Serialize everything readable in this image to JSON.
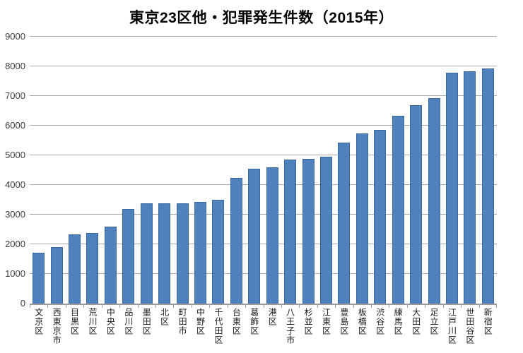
{
  "title": "東京23区他・犯罪発生件数（2015年）",
  "colors": {
    "bar_fill": "#4f81bd",
    "bar_border": "#3a679f",
    "gridline": "#a8a8a8",
    "axis_line": "#9a9a9a",
    "title_text": "#000000",
    "tick_text": "#3d3d3d"
  },
  "chart_data": {
    "type": "bar",
    "title": "東京23区他・犯罪発生件数（2015年）",
    "xlabel": "",
    "ylabel": "",
    "ylim": [
      0,
      9000
    ],
    "yticks": [
      0,
      1000,
      2000,
      3000,
      4000,
      5000,
      6000,
      7000,
      8000,
      9000
    ],
    "grid": true,
    "legend": false,
    "categories": [
      "文京区",
      "西東京市",
      "目黒区",
      "荒川区",
      "中央区",
      "品川区",
      "墨田区",
      "北区",
      "町田市",
      "中野区",
      "千代田区",
      "台東区",
      "葛飾区",
      "港区",
      "八王子市",
      "杉並区",
      "江東区",
      "豊島区",
      "板橋区",
      "渋谷区",
      "練馬区",
      "大田区",
      "足立区",
      "江戸川区",
      "世田谷区",
      "新宿区"
    ],
    "values": [
      1720,
      1900,
      2330,
      2380,
      2590,
      3190,
      3370,
      3370,
      3390,
      3440,
      3490,
      4230,
      4540,
      4590,
      4860,
      4870,
      4960,
      5430,
      5740,
      5860,
      6340,
      6680,
      6920,
      7780,
      7840,
      7920
    ]
  }
}
